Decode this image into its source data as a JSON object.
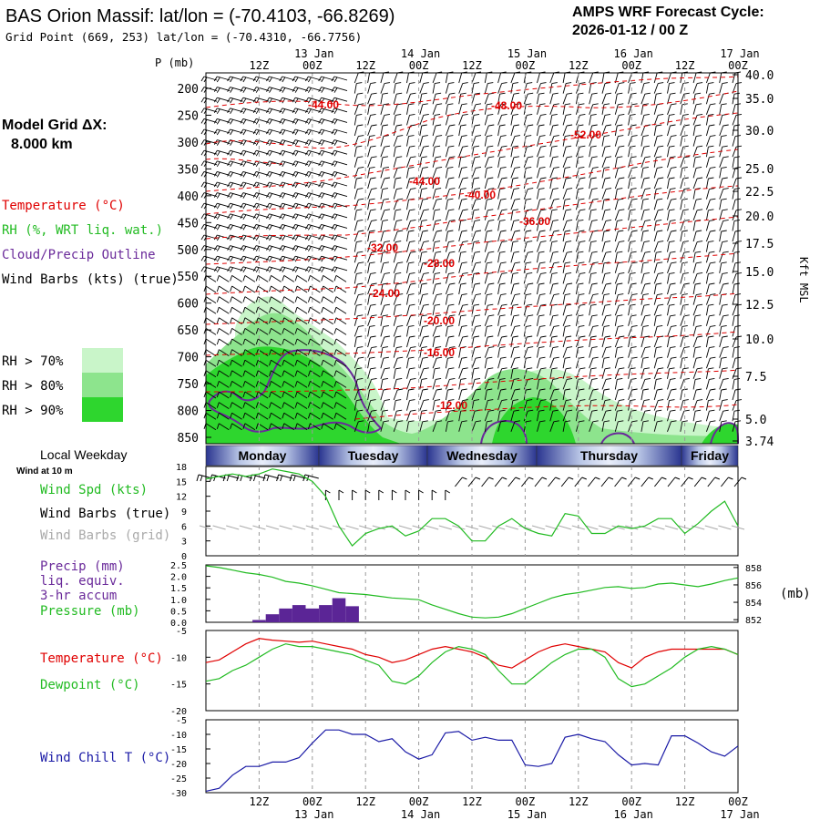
{
  "header": {
    "title": "BAS Orion Massif:  lat/lon = (-70.4103, -66.8269)",
    "grid_point": "Grid Point (669, 253) lat/lon = (-70.4310, -66.7756)",
    "cycle_label": "AMPS WRF Forecast Cycle:",
    "cycle_value": "2026-01-12 / 00  Z"
  },
  "left_panel": {
    "model_grid_label": "Model Grid ΔX:",
    "model_grid_value": "8.000 km",
    "legend_temperature": "Temperature (°C)",
    "legend_rh": "RH (%, WRT liq. wat.)",
    "legend_cloud": "Cloud/Precip Outline",
    "legend_wind": "Wind Barbs (kts) (true)",
    "rh_thresholds": [
      "RH > 70%",
      "RH > 80%",
      "RH > 90%"
    ]
  },
  "colors": {
    "temperature": "#e00000",
    "rh70": "#c9f5c9",
    "rh80": "#8de48d",
    "rh90": "#2ed62e",
    "cloud": "#6a2a9a",
    "precip": "#5b2596",
    "wind_spd": "#22bb22",
    "pressure": "#22bb22",
    "dewpoint": "#22bb22",
    "wind_chill": "#1a1aa6",
    "grid_barbs": "#aaaaaa"
  },
  "time_axis": {
    "top_labels": [
      "12Z",
      "00Z",
      "12Z",
      "00Z",
      "12Z",
      "00Z",
      "12Z",
      "00Z",
      "12Z",
      "00Z"
    ],
    "bottom_labels": [
      "12Z",
      "00Z",
      "12Z",
      "00Z",
      "12Z",
      "00Z",
      "12Z",
      "00Z",
      "12Z",
      "00Z"
    ],
    "dates": [
      "13 Jan",
      "14 Jan",
      "15 Jan",
      "16 Jan",
      "17 Jan"
    ],
    "weekdays": [
      "Monday",
      "Tuesday",
      "Wednesday",
      "Thursday",
      "Friday"
    ]
  },
  "chart_data": [
    {
      "type": "line",
      "panel": "time-height cross section",
      "ylabel": "P (mb)",
      "ylabel_right": "Kft MSL",
      "pressure_ticks": [
        "200",
        "250",
        "300",
        "350",
        "400",
        "450",
        "500",
        "550",
        "600",
        "650",
        "700",
        "750",
        "800",
        "850"
      ],
      "height_ticks": [
        "40.0",
        "35.0",
        "30.0",
        "25.0",
        "22.5",
        "20.0",
        "17.5",
        "15.0",
        "12.5",
        "10.0",
        "7.5",
        "5.0",
        "3.74"
      ],
      "temperature_contour_labels": [
        "-44.00",
        "-48.00",
        "-52.00",
        "-44.00",
        "-40.00",
        "-36.00",
        "-32.00",
        "-28.00",
        "-24.00",
        "-20.00",
        "-16.00",
        "-12.00"
      ]
    },
    {
      "type": "line",
      "panel": "wind at 10 m",
      "label_weekday": "Local Weekday",
      "label_wind10": "Wind at 10 m",
      "legend_spd": "Wind Spd (kts)",
      "legend_barbs_true": "Wind Barbs (true)",
      "legend_barbs_grid": "Wind Barbs (grid)",
      "ylim": [
        0,
        18
      ],
      "yticks": [
        "18",
        "15",
        "12",
        "9",
        "6",
        "3",
        "0"
      ],
      "x_hours": [
        0,
        3,
        6,
        9,
        12,
        15,
        18,
        21,
        24,
        27,
        30,
        33,
        36,
        39,
        42,
        45,
        48,
        51,
        54,
        57,
        60,
        63,
        66,
        69,
        72,
        75,
        78,
        81,
        84,
        87,
        90,
        93,
        96,
        99,
        102,
        105,
        108,
        111,
        114,
        117,
        120
      ],
      "values": [
        15.5,
        16,
        16.5,
        16,
        16.5,
        17.5,
        17,
        16.5,
        15,
        12,
        6,
        2,
        4.5,
        5.5,
        6,
        4,
        5,
        7.5,
        7.5,
        6,
        3,
        3,
        6,
        7.5,
        5.5,
        4.5,
        4,
        8.5,
        8,
        4.5,
        4.5,
        6,
        5.5,
        6,
        7.5,
        7.5,
        4.5,
        6.5,
        9,
        11,
        6
      ]
    },
    {
      "type": "bar",
      "panel": "precip and pressure",
      "legend_precip": "Precip (mm)",
      "legend_liq": "liq. equiv.",
      "legend_accum": "3-hr accum",
      "legend_pressure": "Pressure (mb)",
      "ylabel_right": "(mb)",
      "precip_yticks": [
        "2.5",
        "2.0",
        "1.5",
        "1.0",
        "0.5",
        "0.0"
      ],
      "pressure_yticks": [
        "858",
        "856",
        "854",
        "852"
      ],
      "precip_ylim": [
        0,
        2.5
      ],
      "pressure_ylim": [
        851.7,
        858.3
      ],
      "precip_hours": [
        0,
        3,
        6,
        9,
        12,
        15,
        18,
        21,
        24,
        27,
        30,
        33
      ],
      "precip_values": [
        0,
        0,
        0,
        0,
        0.1,
        0.35,
        0.6,
        0.75,
        0.6,
        0.75,
        1.05,
        0.7
      ],
      "x_hours": [
        0,
        3,
        6,
        9,
        12,
        15,
        18,
        21,
        24,
        27,
        30,
        33,
        36,
        39,
        42,
        45,
        48,
        51,
        54,
        57,
        60,
        63,
        66,
        69,
        72,
        75,
        78,
        81,
        84,
        87,
        90,
        93,
        96,
        99,
        102,
        105,
        108,
        111,
        114,
        117,
        120
      ],
      "pressure_values": [
        858.2,
        858,
        857.7,
        857.4,
        857.2,
        856.9,
        856.4,
        856.2,
        855.9,
        855.5,
        855.1,
        855,
        854.9,
        854.7,
        854.5,
        854.4,
        854.3,
        853.7,
        853.2,
        852.7,
        852.3,
        852.2,
        852.3,
        852.7,
        853.3,
        853.9,
        854.5,
        854.9,
        855.1,
        855.4,
        855.7,
        855.8,
        855.6,
        855.7,
        856.1,
        856.2,
        856,
        855.8,
        856.1,
        856.5,
        856.8
      ]
    },
    {
      "type": "line",
      "panel": "temperature and dewpoint",
      "legend_temperature": "Temperature (°C)",
      "legend_dewpoint": "Dewpoint (°C)",
      "ylim": [
        -20,
        -5
      ],
      "yticks": [
        "-5",
        "-10",
        "-15",
        "-20"
      ],
      "x_hours": [
        0,
        3,
        6,
        9,
        12,
        15,
        18,
        21,
        24,
        27,
        30,
        33,
        36,
        39,
        42,
        45,
        48,
        51,
        54,
        57,
        60,
        63,
        66,
        69,
        72,
        75,
        78,
        81,
        84,
        87,
        90,
        93,
        96,
        99,
        102,
        105,
        108,
        111,
        114,
        117,
        120
      ],
      "series": [
        {
          "name": "Temperature",
          "values": [
            -11,
            -10.5,
            -9,
            -7.5,
            -6.5,
            -6.8,
            -7,
            -7.2,
            -7,
            -7.5,
            -8,
            -8.5,
            -9.5,
            -10,
            -11,
            -10.5,
            -9.5,
            -8.5,
            -8,
            -8.5,
            -9,
            -10,
            -11.5,
            -12,
            -10.5,
            -9,
            -8,
            -7.5,
            -8,
            -8.5,
            -9,
            -11,
            -12,
            -10,
            -9,
            -8.5,
            -8.5,
            -8.5,
            -8.5,
            -8.5,
            -9.5
          ]
        },
        {
          "name": "Dewpoint",
          "values": [
            -14.5,
            -14,
            -12.5,
            -11.5,
            -10,
            -8.5,
            -7.5,
            -8,
            -8,
            -8.5,
            -9,
            -9.5,
            -10.5,
            -11.5,
            -14.5,
            -15,
            -13.5,
            -11,
            -9,
            -8,
            -8.5,
            -9.5,
            -12.5,
            -15,
            -15,
            -13,
            -11,
            -9.5,
            -8.5,
            -8.5,
            -10,
            -14,
            -15.5,
            -15,
            -13.5,
            -12,
            -10,
            -8.5,
            -8,
            -8.5,
            -9.5
          ]
        }
      ]
    },
    {
      "type": "line",
      "panel": "wind chill",
      "legend_wind_chill": "Wind Chill T (°C)",
      "ylim": [
        -30,
        -5
      ],
      "yticks": [
        "-5",
        "-10",
        "-15",
        "-20",
        "-25",
        "-30"
      ],
      "x_hours": [
        0,
        3,
        6,
        9,
        12,
        15,
        18,
        21,
        24,
        27,
        30,
        33,
        36,
        39,
        42,
        45,
        48,
        51,
        54,
        57,
        60,
        63,
        66,
        69,
        72,
        75,
        78,
        81,
        84,
        87,
        90,
        93,
        96,
        99,
        102,
        105,
        108,
        111,
        114,
        117,
        120
      ],
      "values": [
        -29.5,
        -28.5,
        -24,
        -21,
        -21,
        -19.5,
        -19.5,
        -18,
        -13,
        -8.5,
        -8.5,
        -10,
        -10,
        -12.5,
        -11.5,
        -16,
        -18.5,
        -17,
        -9.5,
        -9,
        -12,
        -11,
        -12,
        -12,
        -20.5,
        -21,
        -20,
        -11,
        -10,
        -11.5,
        -12.5,
        -17,
        -20.5,
        -20,
        -20.5,
        -10.5,
        -10.5,
        -13,
        -16,
        -17.5,
        -14
      ]
    }
  ]
}
